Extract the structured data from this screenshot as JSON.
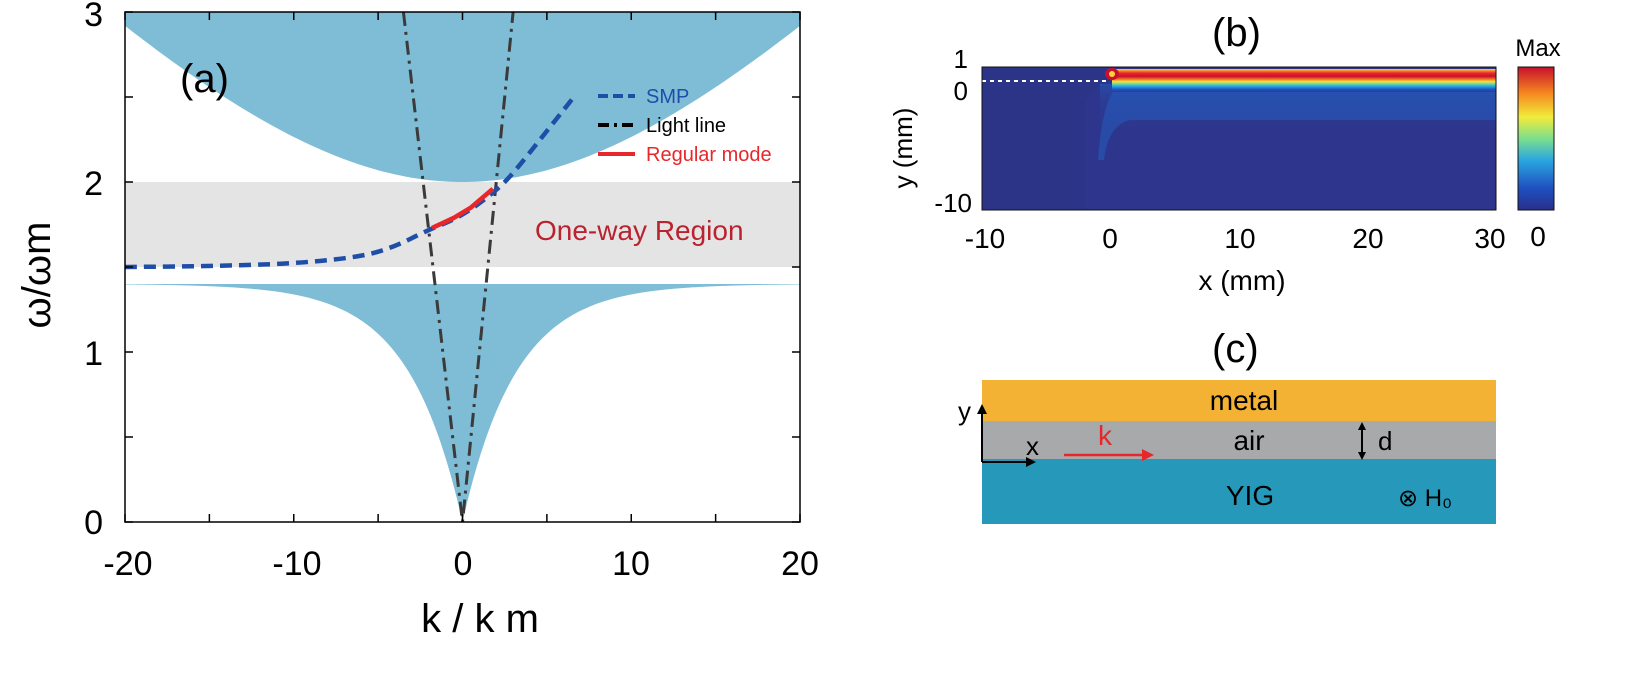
{
  "panel_a": {
    "label": "(a)",
    "ylabel": "ω/ωm",
    "xlabel": "k / k m",
    "x_ticks": [
      "-20",
      "-10",
      "0",
      "10",
      "20"
    ],
    "y_ticks": [
      "0",
      "1",
      "2",
      "3"
    ],
    "legend": [
      {
        "label": "SMP",
        "color": "#1f4ea8"
      },
      {
        "label": "Light line",
        "color": "#000000"
      },
      {
        "label": "Regular mode",
        "color": "#e8272b"
      }
    ],
    "region_label": "One-way Region"
  },
  "panel_b": {
    "label": "(b)",
    "ylabel": "y (mm)",
    "xlabel": "x (mm)",
    "x_ticks": [
      "-10",
      "0",
      "10",
      "20",
      "30"
    ],
    "y_ticks": [
      "1",
      "0",
      "-10"
    ],
    "colorbar_max": "Max",
    "colorbar_min": "0"
  },
  "panel_c": {
    "label": "(c)",
    "metal": "metal",
    "air": "air",
    "yig": "YIG",
    "k": "k",
    "d": "d",
    "x_axis": "x",
    "y_axis": "y",
    "h_field": "⊗ H₀"
  },
  "chart_data": [
    {
      "type": "line",
      "title": "(a)",
      "xlabel": "k/km",
      "ylabel": "ω/ωm",
      "xlim": [
        -20,
        20
      ],
      "ylim": [
        0,
        3
      ],
      "bands": [
        {
          "name": "upper bulk band",
          "lower_edge": "omega^2 = 4 + 0.0113 k^2 (min 2.0 at k=0)",
          "color": "#7fbdd6"
        },
        {
          "name": "lower bulk band",
          "upper_edge": "flat at 1.414 (|k| large), dropping to 0 at k=0",
          "color": "#7fbdd6"
        },
        {
          "name": "one-way region",
          "omega_range": [
            1.5,
            2.0
          ],
          "color": "#e4e4e4"
        }
      ],
      "series": [
        {
          "name": "SMP",
          "style": "dashed",
          "color": "#1f4ea8",
          "points": [
            [
              -20,
              1.5
            ],
            [
              -15,
              1.505
            ],
            [
              -10,
              1.52
            ],
            [
              -6,
              1.56
            ],
            [
              -4,
              1.62
            ],
            [
              -2.2,
              1.71
            ],
            [
              0,
              1.8
            ],
            [
              2,
              1.95
            ],
            [
              3,
              2.05
            ],
            [
              5,
              2.3
            ],
            [
              6.6,
              2.5
            ]
          ]
        },
        {
          "name": "Regular mode",
          "style": "solid",
          "color": "#e8272b",
          "points": [
            [
              -1.8,
              1.73
            ],
            [
              -0.5,
              1.79
            ],
            [
              0.5,
              1.85
            ],
            [
              1.8,
              1.96
            ]
          ]
        },
        {
          "name": "Light line",
          "style": "dash-dot",
          "color": "#333333",
          "points": [
            [
              -3.5,
              3
            ],
            [
              0,
              0
            ],
            [
              3,
              3
            ]
          ]
        }
      ]
    },
    {
      "type": "heatmap",
      "title": "(b)",
      "xlabel": "x (mm)",
      "ylabel": "y (mm)",
      "xlim": [
        -10,
        30
      ],
      "ylim": [
        -10,
        1
      ],
      "colorbar": [
        "0",
        "Max"
      ],
      "description_values": {
        "source_x": 0,
        "source_y": 0,
        "interface_y": 0
      }
    }
  ]
}
